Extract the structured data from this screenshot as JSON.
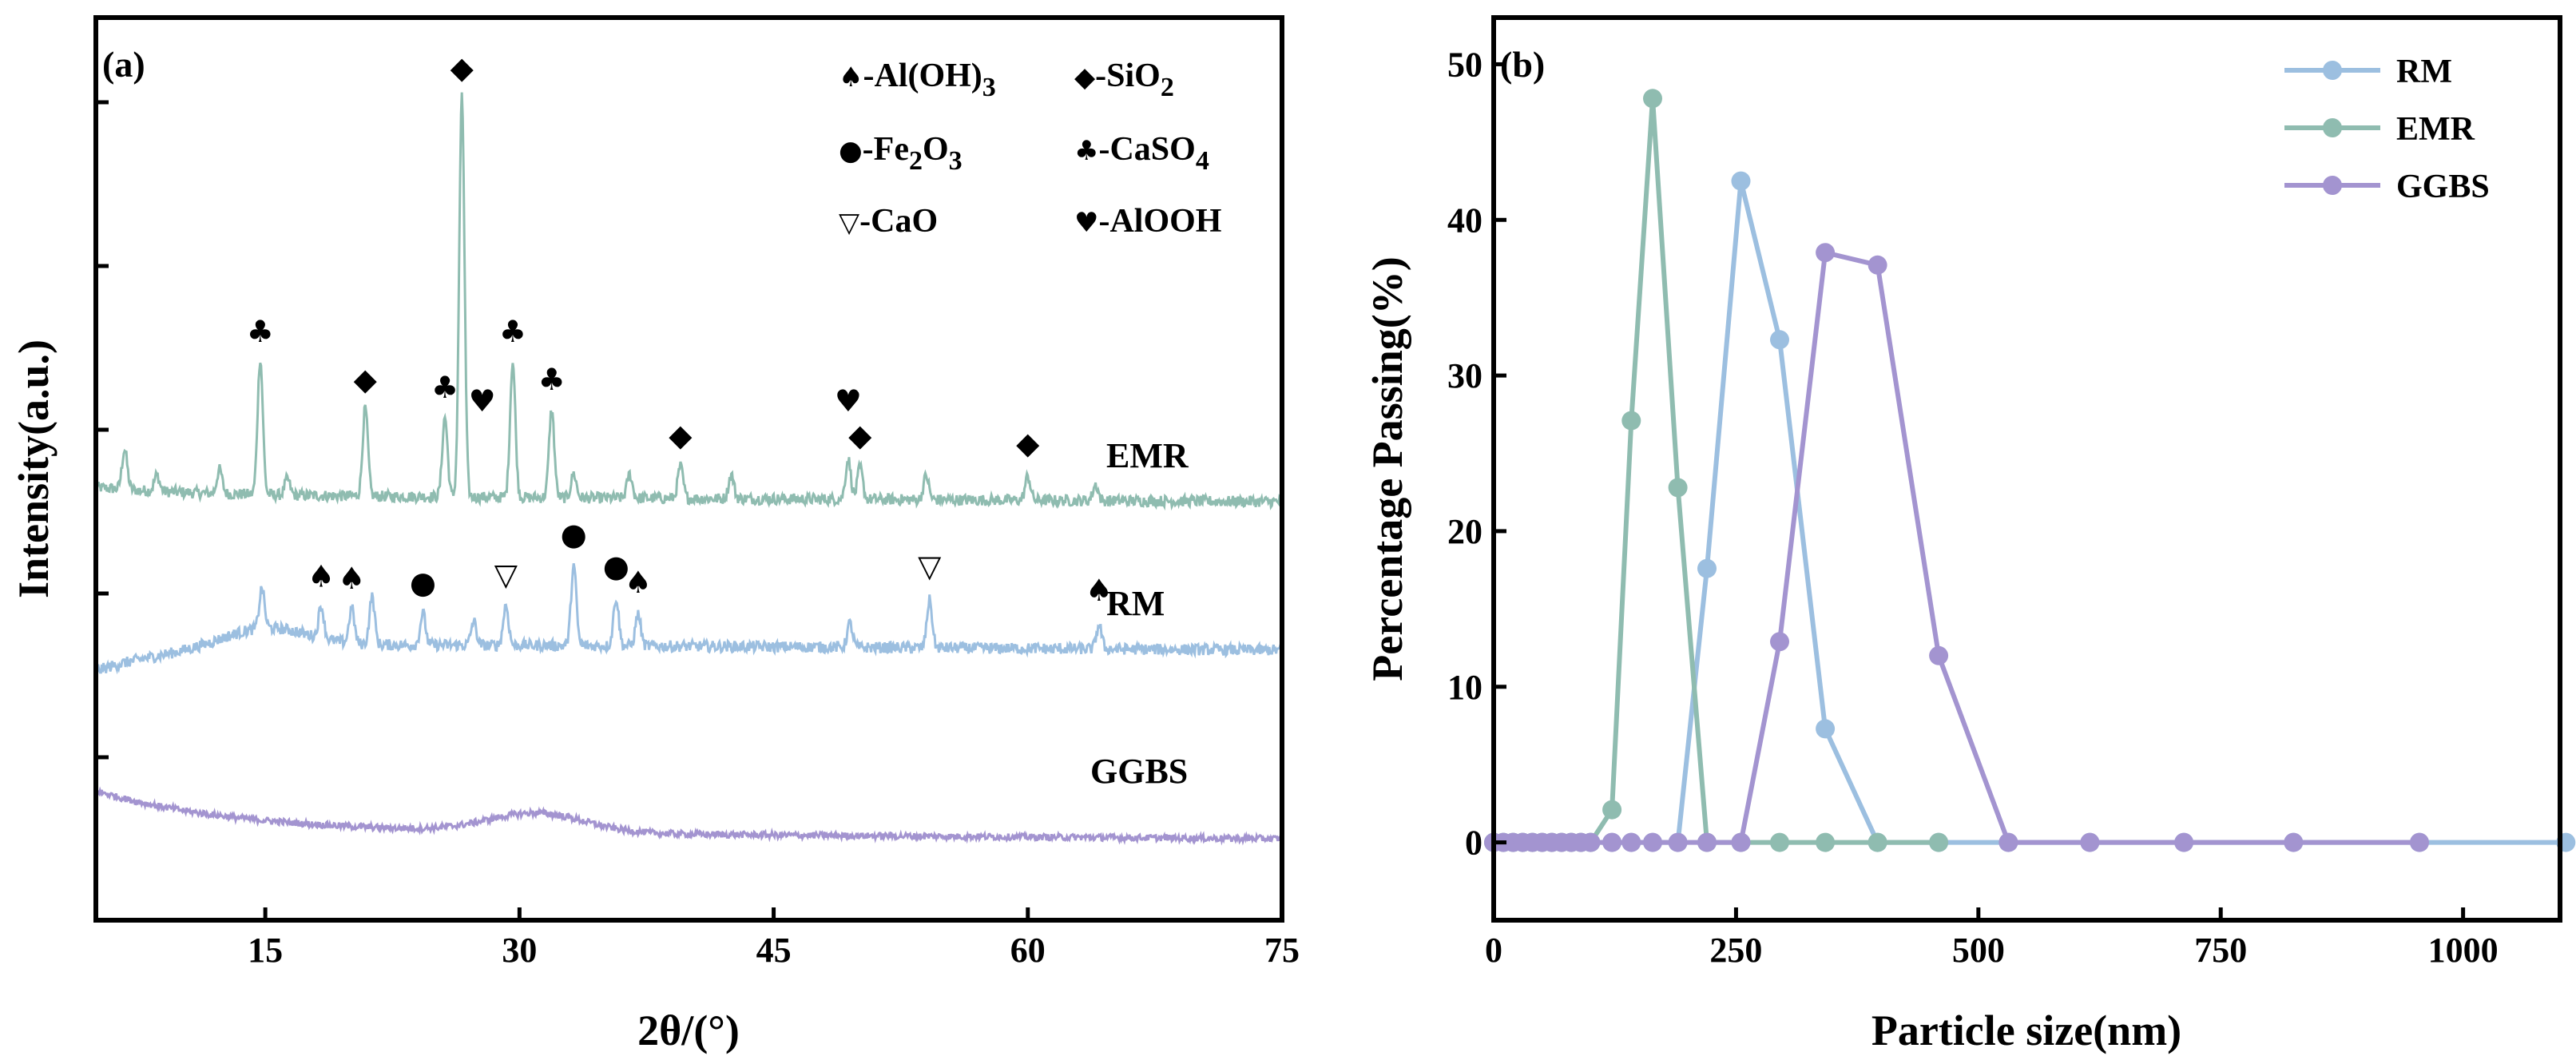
{
  "chart_data": [
    {
      "panel": "(a)",
      "type": "line",
      "xlabel": "2θ/(°)",
      "ylabel": "Intensity(a.u.)",
      "xlim": [
        5,
        75
      ],
      "xticks": [
        "15",
        "30",
        "45",
        "60",
        "75"
      ],
      "xtick_values": [
        15,
        30,
        45,
        60,
        75
      ],
      "legend": [
        {
          "symbol": "♠",
          "label": "-Al(OH)",
          "sub": "3"
        },
        {
          "symbol": "◆",
          "label": "-SiO",
          "sub": "2"
        },
        {
          "symbol": "●",
          "label": "-Fe",
          "sub": "2",
          "label2": "O",
          "sub2": "3"
        },
        {
          "symbol": "♣",
          "label": "-CaSO",
          "sub": "4"
        },
        {
          "symbol": "▽",
          "label": "-CaO",
          "sub": ""
        },
        {
          "symbol": "♥",
          "label": "-AlOOH",
          "sub": ""
        }
      ],
      "series": [
        {
          "name": "EMR",
          "color": "#8fbcb0",
          "baseline": 2.1,
          "peaks": [
            [
              6.7,
              0.25
            ],
            [
              8.6,
              0.1
            ],
            [
              12.3,
              0.15
            ],
            [
              14.7,
              0.85
            ],
            [
              16.3,
              0.1
            ],
            [
              20.9,
              0.55
            ],
            [
              25.6,
              0.5
            ],
            [
              26.6,
              2.5
            ],
            [
              29.6,
              0.85
            ],
            [
              31.9,
              0.55
            ],
            [
              33.2,
              0.15
            ],
            [
              36.5,
              0.15
            ],
            [
              39.5,
              0.2
            ],
            [
              42.5,
              0.15
            ],
            [
              49.4,
              0.25
            ],
            [
              50.1,
              0.2
            ],
            [
              54.0,
              0.15
            ],
            [
              60.0,
              0.15
            ],
            [
              64.0,
              0.1
            ]
          ],
          "markers": [
            {
              "x": 14.7,
              "symbol": "♣"
            },
            {
              "x": 20.9,
              "symbol": "◆"
            },
            {
              "x": 25.6,
              "symbol": "♣"
            },
            {
              "x": 26.6,
              "symbol": "◆"
            },
            {
              "x": 27.8,
              "symbol": "♥"
            },
            {
              "x": 29.6,
              "symbol": "♣"
            },
            {
              "x": 31.9,
              "symbol": "♣"
            },
            {
              "x": 39.5,
              "symbol": "◆"
            },
            {
              "x": 49.4,
              "symbol": "♥"
            },
            {
              "x": 50.1,
              "symbol": "◆"
            },
            {
              "x": 60.0,
              "symbol": "◆"
            }
          ]
        },
        {
          "name": "RM",
          "color": "#9cbfe0",
          "baseline": 1.0,
          "peaks": [
            [
              14.8,
              0.25
            ],
            [
              18.3,
              0.2
            ],
            [
              20.1,
              0.22
            ],
            [
              21.3,
              0.3
            ],
            [
              24.3,
              0.2
            ],
            [
              27.3,
              0.15
            ],
            [
              29.2,
              0.25
            ],
            [
              33.2,
              0.5
            ],
            [
              35.7,
              0.3
            ],
            [
              37.0,
              0.2
            ],
            [
              49.5,
              0.15
            ],
            [
              54.2,
              0.3
            ],
            [
              64.2,
              0.15
            ]
          ],
          "markers": [
            {
              "x": 18.3,
              "symbol": "♠"
            },
            {
              "x": 20.1,
              "symbol": "♠"
            },
            {
              "x": 24.3,
              "symbol": "●"
            },
            {
              "x": 29.2,
              "symbol": "▽"
            },
            {
              "x": 33.2,
              "symbol": "●"
            },
            {
              "x": 35.7,
              "symbol": "●"
            },
            {
              "x": 37.0,
              "symbol": "♠"
            },
            {
              "x": 54.2,
              "symbol": "▽"
            },
            {
              "x": 64.2,
              "symbol": "♠"
            }
          ]
        },
        {
          "name": "GGBS",
          "color": "#a394d0",
          "baseline": 0.0,
          "peaks": [
            [
              31.0,
              0.12
            ]
          ],
          "markers": []
        }
      ]
    },
    {
      "panel": "(b)",
      "type": "line",
      "xlabel": "Particle size(nm)",
      "ylabel": "Percentage Passing(%)",
      "xlim": [
        0,
        1100
      ],
      "ylim": [
        -5,
        53
      ],
      "xticks": [
        0,
        250,
        500,
        750,
        1000
      ],
      "yticks": [
        0,
        10,
        20,
        30,
        40,
        50
      ],
      "legend_position": "top-right",
      "series": [
        {
          "name": "RM",
          "color": "#9cbfe0",
          "x": [
            0,
            10,
            20,
            30,
            40,
            50,
            60,
            70,
            80,
            90,
            100,
            122,
            142,
            164,
            190,
            220,
            255,
            295,
            342,
            396,
            459,
            531,
            615,
            712,
            825,
            955,
            1106
          ],
          "y": [
            0,
            0,
            0,
            0,
            0,
            0,
            0,
            0,
            0,
            0,
            0,
            0,
            0,
            0,
            0,
            17.6,
            42.5,
            32.3,
            7.3,
            0,
            0,
            0,
            0,
            0,
            0,
            0,
            0
          ]
        },
        {
          "name": "EMR",
          "color": "#8fbcb0",
          "x": [
            0,
            10,
            20,
            30,
            40,
            50,
            60,
            70,
            80,
            90,
            100,
            122,
            142,
            164,
            190,
            220,
            255,
            295,
            342,
            396,
            459
          ],
          "y": [
            0,
            0,
            0,
            0,
            0,
            0,
            0,
            0,
            0,
            0,
            0,
            2.1,
            27.1,
            47.8,
            22.8,
            0,
            0,
            0,
            0,
            0,
            0
          ]
        },
        {
          "name": "GGBS",
          "color": "#a394d0",
          "x": [
            0,
            10,
            20,
            30,
            40,
            50,
            60,
            70,
            80,
            90,
            100,
            122,
            142,
            164,
            190,
            220,
            255,
            295,
            342,
            396,
            459,
            531,
            615,
            712,
            825,
            955
          ],
          "y": [
            0,
            0,
            0,
            0,
            0,
            0,
            0,
            0,
            0,
            0,
            0,
            0,
            0,
            0,
            0,
            0,
            0,
            12.9,
            37.9,
            37.1,
            12.0,
            0,
            0,
            0,
            0,
            0
          ]
        }
      ]
    }
  ]
}
